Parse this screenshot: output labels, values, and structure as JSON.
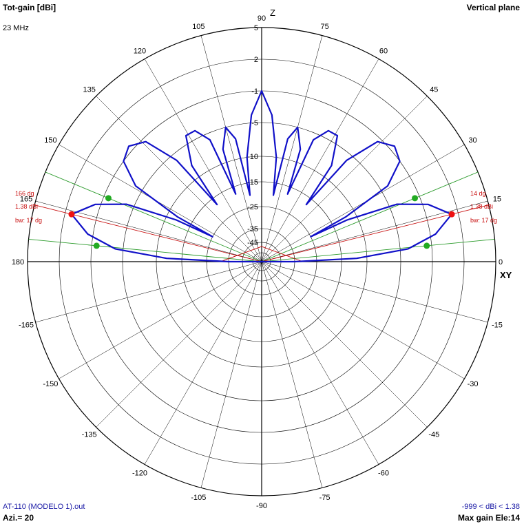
{
  "header": {
    "title": "Tot-gain [dBi]",
    "frequency": "23 MHz",
    "plane": "Vertical plane"
  },
  "footer": {
    "file": "AT-110 (MODELO 1).out",
    "azimuth": "Azi.= 20",
    "range": "-999 < dBi < 1.38",
    "max_gain": "Max gain Ele:14"
  },
  "axes": {
    "z_label": "Z",
    "xy_label": "XY",
    "angle_labels": [
      "90",
      "75",
      "60",
      "45",
      "30",
      "15",
      "0",
      "-15",
      "-30",
      "-45",
      "-60",
      "-75",
      "-90",
      "-105",
      "-120",
      "-135",
      "-150",
      "-165",
      "180",
      "165",
      "150",
      "135",
      "120",
      "105"
    ],
    "ring_labels": [
      "5",
      "2",
      "-1",
      "-5",
      "-10",
      "-15",
      "-25",
      "-35",
      "-45"
    ]
  },
  "markers": {
    "right": {
      "angle": "14 dg",
      "gain": "1.38 dBi",
      "bw": "bw: 17 dg"
    },
    "left": {
      "angle": "166 dg",
      "gain": "1.38 dBi",
      "bw": "bw: 17 dg"
    }
  },
  "colors": {
    "pattern": "#1010c8",
    "grid": "#000000",
    "beamwidth": "#2a9a2a",
    "max_line": "#c81010",
    "half_power_dot": "#22aa22",
    "max_dot": "#ee1111",
    "footer_text": "#1a1aa6"
  },
  "chart_data": {
    "type": "polar",
    "ring_db_values": [
      5,
      2,
      -1,
      -5,
      -10,
      -15,
      -25,
      -35,
      -45
    ],
    "angle_step_deg": 15,
    "pattern_points": [
      [
        0,
        -35
      ],
      [
        2,
        -12
      ],
      [
        5,
        -4
      ],
      [
        9,
        -0.5
      ],
      [
        14,
        1.38
      ],
      [
        19,
        -0.5
      ],
      [
        23,
        -4
      ],
      [
        26,
        -12
      ],
      [
        27,
        -25
      ],
      [
        28,
        -12
      ],
      [
        31,
        -4
      ],
      [
        36,
        -1
      ],
      [
        41,
        -0.5
      ],
      [
        46,
        -1.5
      ],
      [
        50,
        -6
      ],
      [
        52,
        -18
      ],
      [
        54,
        -8
      ],
      [
        59,
        -4
      ],
      [
        63,
        -4
      ],
      [
        67,
        -6
      ],
      [
        69,
        -18
      ],
      [
        71,
        -8
      ],
      [
        75,
        -5
      ],
      [
        78,
        -7
      ],
      [
        80,
        -20
      ],
      [
        82,
        -10
      ],
      [
        86,
        -4
      ],
      [
        90,
        -1
      ],
      [
        94,
        -4
      ],
      [
        98,
        -10
      ],
      [
        100,
        -20
      ],
      [
        102,
        -7
      ],
      [
        105,
        -5
      ],
      [
        109,
        -8
      ],
      [
        111,
        -18
      ],
      [
        113,
        -6
      ],
      [
        117,
        -4
      ],
      [
        121,
        -4
      ],
      [
        126,
        -8
      ],
      [
        128,
        -18
      ],
      [
        130,
        -6
      ],
      [
        134,
        -1.5
      ],
      [
        139,
        -0.5
      ],
      [
        144,
        -1
      ],
      [
        149,
        -4
      ],
      [
        152,
        -12
      ],
      [
        153,
        -25
      ],
      [
        154,
        -12
      ],
      [
        157,
        -4
      ],
      [
        161,
        -0.5
      ],
      [
        166,
        1.38
      ],
      [
        171,
        -0.5
      ],
      [
        175,
        -4
      ],
      [
        178,
        -12
      ],
      [
        180,
        -35
      ]
    ],
    "max_gain_dbi": 1.38,
    "max_gain_elevation_deg": 14,
    "beamwidth_deg": 17
  }
}
